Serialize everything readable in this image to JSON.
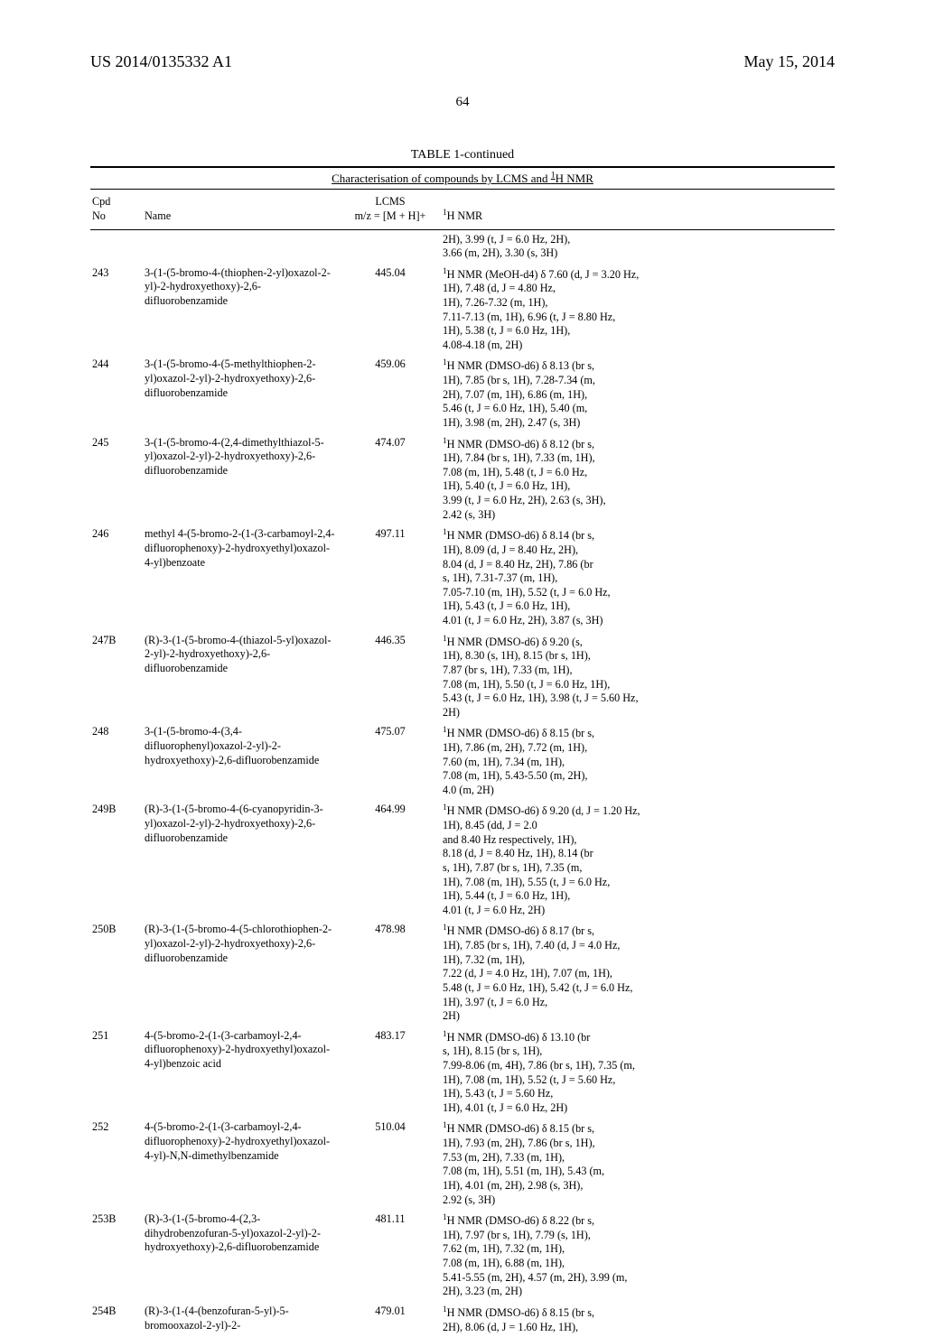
{
  "header": {
    "left": "US 2014/0135332 A1",
    "right": "May 15, 2014"
  },
  "page_number": "64",
  "table": {
    "title": "TABLE 1-continued",
    "subtitle_html": "Characterisation of compounds by LCMS and <span class=\"sup\">1</span>H NMR",
    "columns": {
      "cpd_no_html": "Cpd<br>No",
      "name": "Name",
      "lcms_html": "LCMS<br>m/z = [M + H]+",
      "nmr_html": "<span class=\"sup\">1</span>H NMR"
    },
    "pre_rows": [
      {
        "cpd_no": "",
        "name": "",
        "lcms": "",
        "nmr": "2H), 3.99 (t, J = 6.0 Hz, 2H),\n3.66 (m, 2H), 3.30 (s, 3H)"
      }
    ],
    "rows": [
      {
        "cpd_no": "243",
        "name": "3-(1-(5-bromo-4-(thiophen-2-yl)oxazol-2-yl)-2-hydroxyethoxy)-2,6-difluorobenzamide",
        "lcms": "445.04",
        "nmr_html": "<span class=\"sup\">1</span>H NMR (MeOH-d4) δ 7.60 (d, J = 3.20 Hz,\n1H), 7.48 (d, J = 4.80 Hz,\n1H), 7.26-7.32 (m, 1H),\n7.11-7.13 (m, 1H), 6.96 (t, J = 8.80 Hz,\n1H), 5.38 (t, J = 6.0 Hz, 1H),\n4.08-4.18 (m, 2H)"
      },
      {
        "cpd_no": "244",
        "name": "3-(1-(5-bromo-4-(5-methylthiophen-2-yl)oxazol-2-yl)-2-hydroxyethoxy)-2,6-difluorobenzamide",
        "lcms": "459.06",
        "nmr_html": "<span class=\"sup\">1</span>H NMR (DMSO-d6) δ 8.13 (br s,\n1H), 7.85 (br s, 1H), 7.28-7.34 (m,\n2H), 7.07 (m, 1H), 6.86 (m, 1H),\n5.46 (t, J = 6.0 Hz, 1H), 5.40 (m,\n1H), 3.98 (m, 2H), 2.47 (s, 3H)"
      },
      {
        "cpd_no": "245",
        "name": "3-(1-(5-bromo-4-(2,4-dimethylthiazol-5-yl)oxazol-2-yl)-2-hydroxyethoxy)-2,6-difluorobenzamide",
        "lcms": "474.07",
        "nmr_html": "<span class=\"sup\">1</span>H NMR (DMSO-d6) δ 8.12 (br s,\n1H), 7.84 (br s, 1H), 7.33 (m, 1H),\n7.08 (m, 1H), 5.48 (t, J = 6.0 Hz,\n1H), 5.40 (t, J = 6.0 Hz, 1H),\n3.99 (t, J = 6.0 Hz, 2H), 2.63 (s, 3H),\n2.42 (s, 3H)"
      },
      {
        "cpd_no": "246",
        "name": "methyl 4-(5-bromo-2-(1-(3-carbamoyl-2,4-difluorophenoxy)-2-hydroxyethyl)oxazol-4-yl)benzoate",
        "lcms": "497.11",
        "nmr_html": "<span class=\"sup\">1</span>H NMR (DMSO-d6) δ 8.14 (br s,\n1H), 8.09 (d, J = 8.40 Hz, 2H),\n8.04 (d, J = 8.40 Hz, 2H), 7.86 (br\ns, 1H), 7.31-7.37 (m, 1H),\n7.05-7.10 (m, 1H), 5.52 (t, J = 6.0 Hz,\n1H), 5.43 (t, J = 6.0 Hz, 1H),\n4.01 (t, J = 6.0 Hz, 2H), 3.87 (s, 3H)"
      },
      {
        "cpd_no": "247B",
        "name": "(R)-3-(1-(5-bromo-4-(thiazol-5-yl)oxazol-2-yl)-2-hydroxyethoxy)-2,6-difluorobenzamide",
        "lcms": "446.35",
        "nmr_html": "<span class=\"sup\">1</span>H NMR (DMSO-d6) δ 9.20 (s,\n1H), 8.30 (s, 1H), 8.15 (br s, 1H),\n7.87 (br s, 1H), 7.33 (m, 1H),\n7.08 (m, 1H), 5.50 (t, J = 6.0 Hz, 1H),\n5.43 (t, J = 6.0 Hz, 1H), 3.98 (t, J = 5.60 Hz,\n2H)"
      },
      {
        "cpd_no": "248",
        "name": "3-(1-(5-bromo-4-(3,4-difluorophenyl)oxazol-2-yl)-2-hydroxyethoxy)-2,6-difluorobenzamide",
        "lcms": "475.07",
        "nmr_html": "<span class=\"sup\">1</span>H NMR (DMSO-d6) δ 8.15 (br s,\n1H), 7.86 (m, 2H), 7.72 (m, 1H),\n7.60 (m, 1H), 7.34 (m, 1H),\n7.08 (m, 1H), 5.43-5.50 (m, 2H),\n4.0 (m, 2H)"
      },
      {
        "cpd_no": "249B",
        "name": "(R)-3-(1-(5-bromo-4-(6-cyanopyridin-3-yl)oxazol-2-yl)-2-hydroxyethoxy)-2,6-difluorobenzamide",
        "lcms": "464.99",
        "nmr_html": "<span class=\"sup\">1</span>H NMR (DMSO-d6) δ 9.20 (d, J = 1.20 Hz,\n1H), 8.45 (dd, J = 2.0\nand 8.40 Hz respectively, 1H),\n8.18 (d, J = 8.40 Hz, 1H), 8.14 (br\ns, 1H), 7.87 (br s, 1H), 7.35 (m,\n1H), 7.08 (m, 1H), 5.55 (t, J = 6.0 Hz,\n1H), 5.44 (t, J = 6.0 Hz, 1H),\n4.01 (t, J = 6.0 Hz, 2H)"
      },
      {
        "cpd_no": "250B",
        "name": "(R)-3-(1-(5-bromo-4-(5-chlorothiophen-2-yl)oxazol-2-yl)-2-hydroxyethoxy)-2,6-difluorobenzamide",
        "lcms": "478.98",
        "nmr_html": "<span class=\"sup\">1</span>H NMR (DMSO-d6) δ 8.17 (br s,\n1H), 7.85 (br s, 1H), 7.40 (d, J = 4.0 Hz,\n1H), 7.32 (m, 1H),\n7.22 (d, J = 4.0 Hz, 1H), 7.07 (m, 1H),\n5.48 (t, J = 6.0 Hz, 1H), 5.42 (t, J = 6.0 Hz,\n1H), 3.97 (t, J = 6.0 Hz,\n2H)"
      },
      {
        "cpd_no": "251",
        "name": "4-(5-bromo-2-(1-(3-carbamoyl-2,4-difluorophenoxy)-2-hydroxyethyl)oxazol-4-yl)benzoic acid",
        "lcms": "483.17",
        "nmr_html": "<span class=\"sup\">1</span>H NMR (DMSO-d6) δ 13.10 (br\ns, 1H), 8.15 (br s, 1H),\n7.99-8.06 (m, 4H), 7.86 (br s, 1H), 7.35 (m,\n1H), 7.08 (m, 1H), 5.52 (t, J = 5.60 Hz,\n1H), 5.43 (t, J = 5.60 Hz,\n1H), 4.01 (t, J = 6.0 Hz, 2H)"
      },
      {
        "cpd_no": "252",
        "name": "4-(5-bromo-2-(1-(3-carbamoyl-2,4-difluorophenoxy)-2-hydroxyethyl)oxazol-4-yl)-N,N-dimethylbenzamide",
        "lcms": "510.04",
        "nmr_html": "<span class=\"sup\">1</span>H NMR (DMSO-d6) δ 8.15 (br s,\n1H), 7.93 (m, 2H), 7.86 (br s, 1H),\n7.53 (m, 2H), 7.33 (m, 1H),\n7.08 (m, 1H), 5.51 (m, 1H), 5.43 (m,\n1H), 4.01 (m, 2H), 2.98 (s, 3H),\n2.92 (s, 3H)"
      },
      {
        "cpd_no": "253B",
        "name": "(R)-3-(1-(5-bromo-4-(2,3-dihydrobenzofuran-5-yl)oxazol-2-yl)-2-hydroxyethoxy)-2,6-difluorobenzamide",
        "lcms": "481.11",
        "nmr_html": "<span class=\"sup\">1</span>H NMR (DMSO-d6) δ 8.22 (br s,\n1H), 7.97 (br s, 1H), 7.79 (s, 1H),\n7.62 (m, 1H), 7.32 (m, 1H),\n7.08 (m, 1H), 6.88 (m, 1H),\n5.41-5.55 (m, 2H), 4.57 (m, 2H), 3.99 (m,\n2H), 3.23 (m, 2H)"
      },
      {
        "cpd_no": "254B",
        "name": "(R)-3-(1-(4-(benzofuran-5-yl)-5-bromooxazol-2-yl)-2-",
        "lcms": "479.01",
        "nmr_html": "<span class=\"sup\">1</span>H NMR (DMSO-d6) δ 8.15 (br s,\n2H), 8.06 (d, J = 1.60 Hz, 1H),"
      }
    ]
  }
}
